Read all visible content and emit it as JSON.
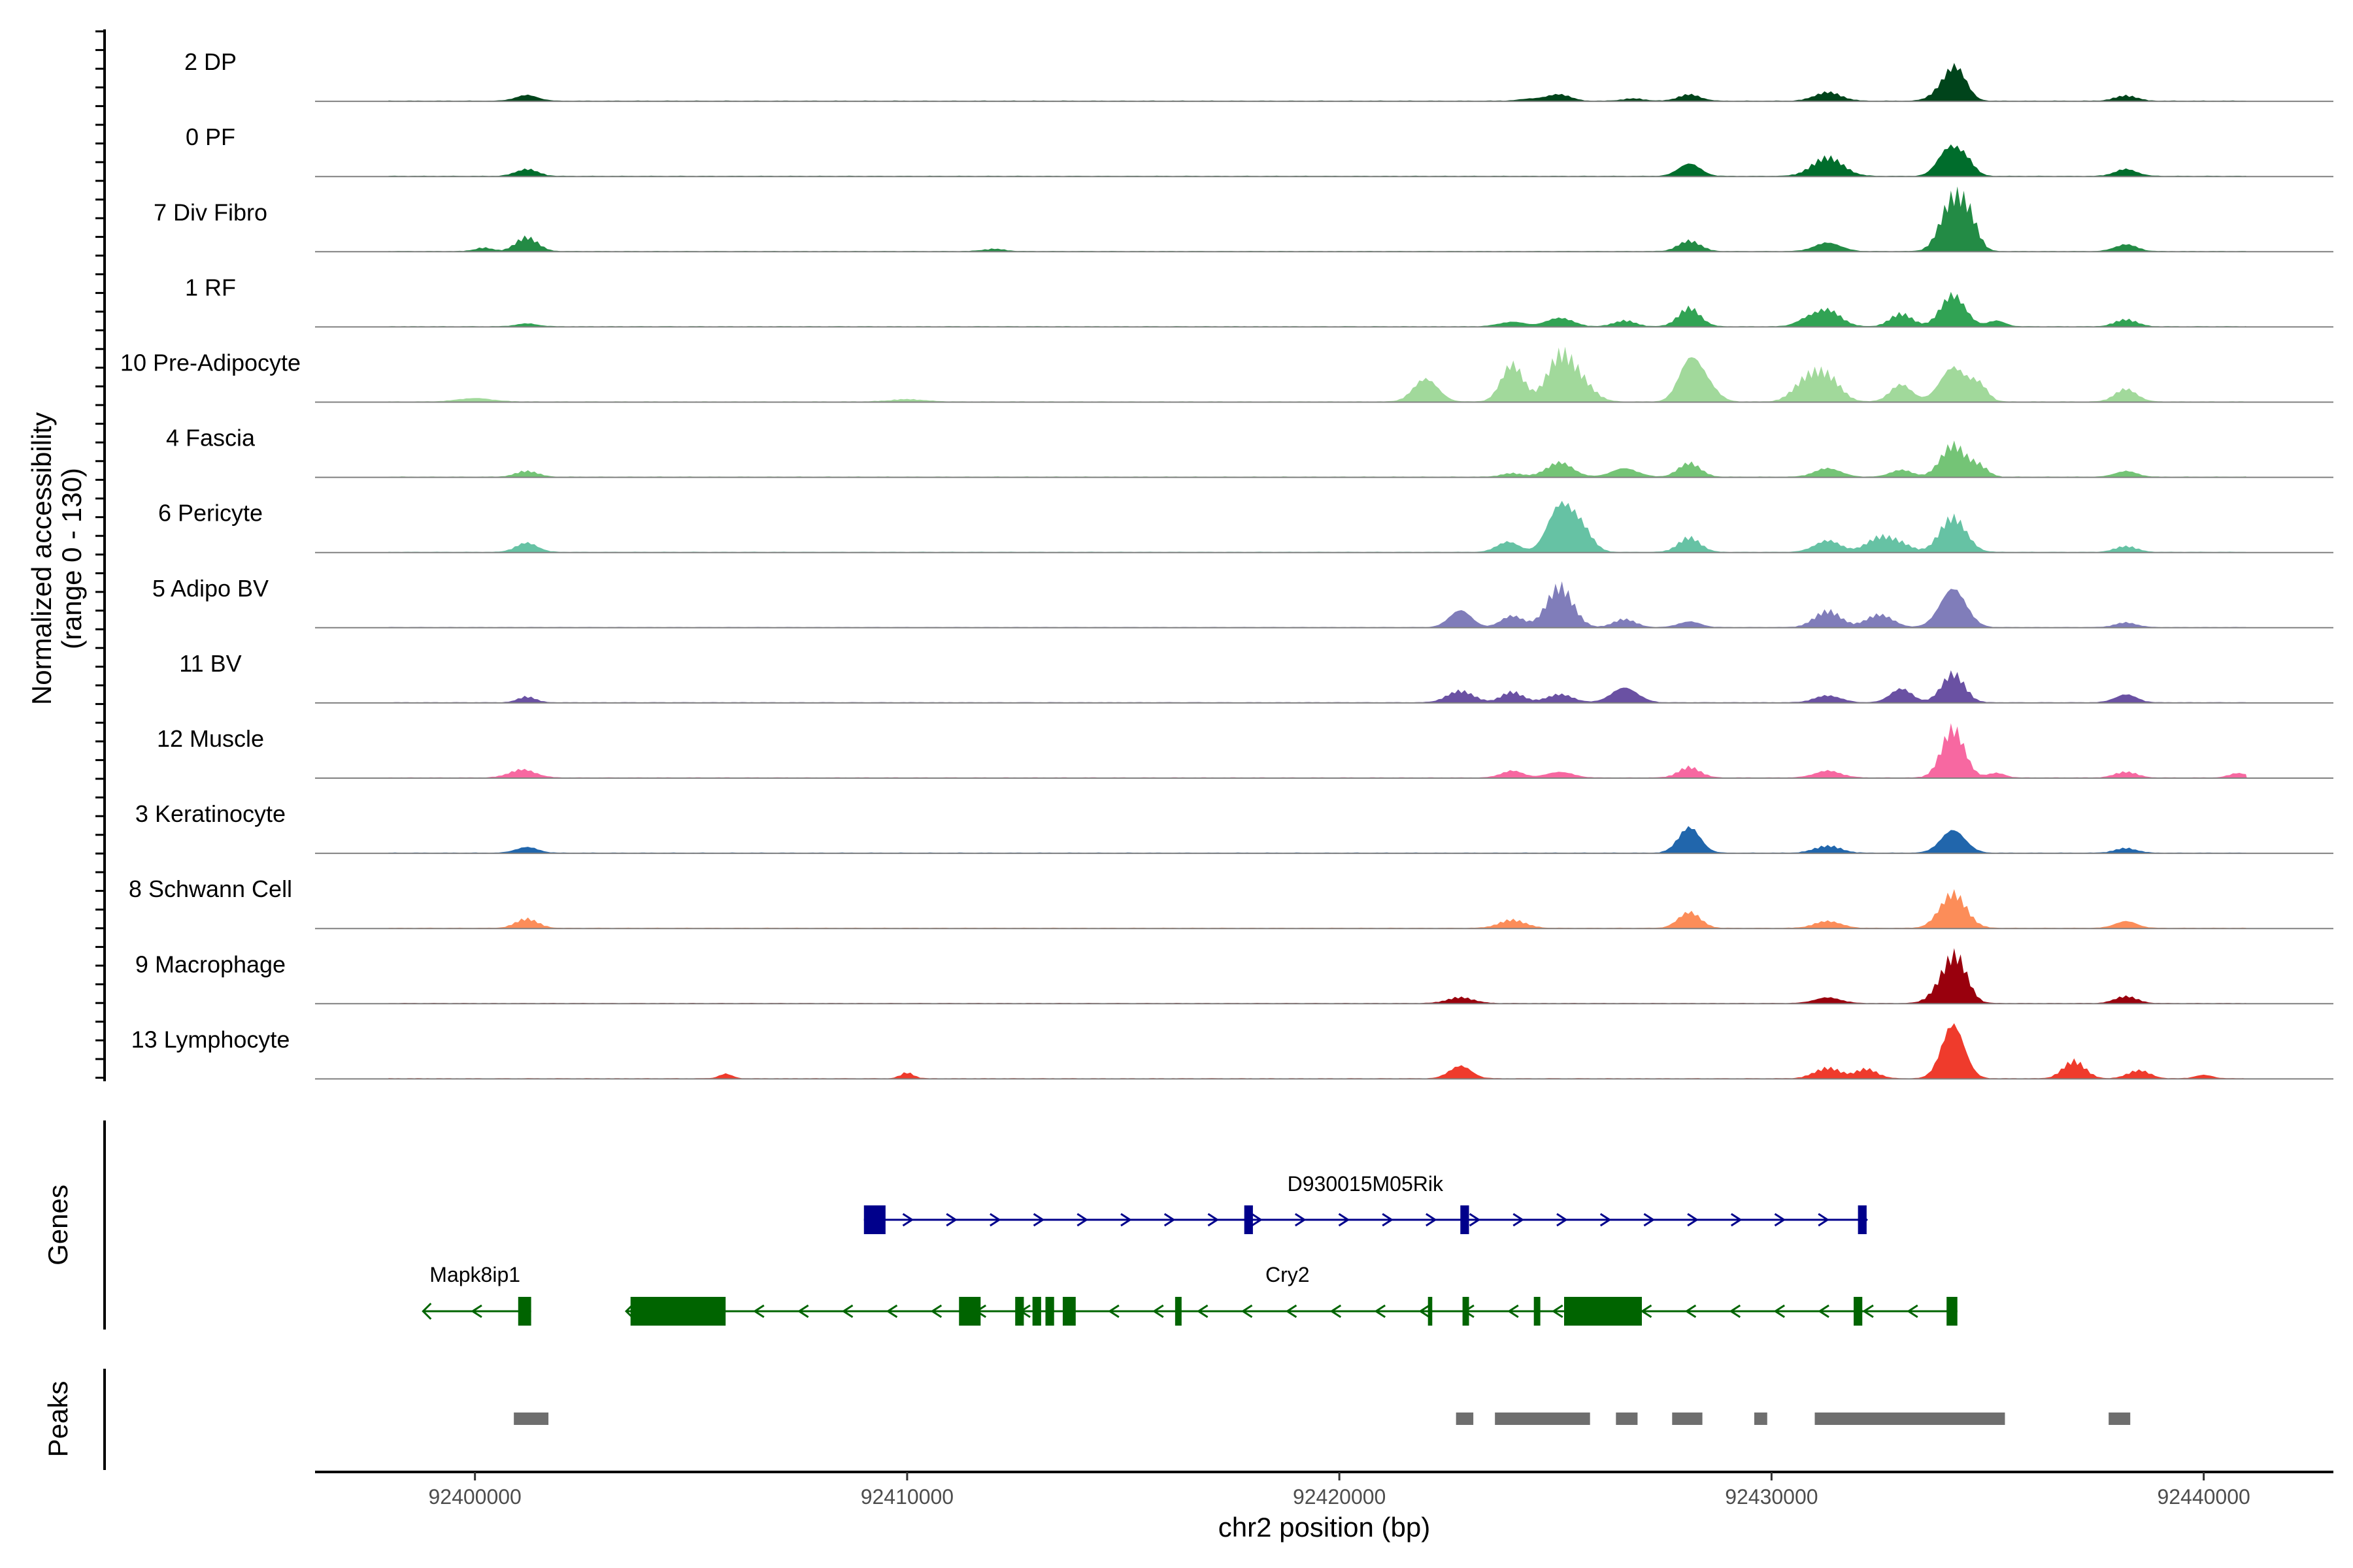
{
  "chart_data": {
    "type": "area",
    "title": "",
    "ylabel_line1": "Normalized accessibility",
    "ylabel_line2": "(range 0 - 130)",
    "genes_label": "Genes",
    "peaks_label": "Peaks",
    "xlabel": "chr2 position (bp)",
    "xlim": [
      92396300,
      92443000
    ],
    "xticks": [
      92400000,
      92410000,
      92420000,
      92430000,
      92440000
    ],
    "ylim": [
      0,
      130
    ],
    "profile_points": [
      92398000,
      92398500,
      92399000,
      92399500,
      92400000,
      92400500,
      92401000,
      92401500,
      92402000,
      92402500,
      92403000,
      92403500,
      92404000,
      92404500,
      92405000,
      92405500,
      92406000,
      92406500,
      92407000,
      92407500,
      92408000,
      92408500,
      92409000,
      92409500,
      92410000,
      92410500,
      92411000,
      92411500,
      92412000,
      92412500,
      92413000,
      92413500,
      92414000,
      92414500,
      92415000,
      92415500,
      92416000,
      92416500,
      92417000,
      92417500,
      92418000,
      92418500,
      92419000,
      92419500,
      92420000,
      92420500,
      92421000,
      92421500,
      92422000,
      92422500,
      92423000,
      92423500,
      92424000,
      92424500,
      92425000,
      92425500,
      92426000,
      92426500,
      92427000,
      92427500,
      92428000,
      92428500,
      92429000,
      92429500,
      92430000,
      92430500,
      92431000,
      92431500,
      92432000,
      92432500,
      92433000,
      92433500,
      92434000,
      92434500,
      92435000,
      92435500,
      92436000,
      92436500,
      92437000,
      92437500,
      92438000,
      92438500,
      92439000,
      92439500,
      92440000,
      92440500,
      92441000
    ],
    "series": [
      {
        "name": "2 DP",
        "color": "#00441b",
        "peaks": [
          [
            92401200,
            10,
            250
          ],
          [
            92424500,
            4,
            300
          ],
          [
            92425100,
            11,
            250
          ],
          [
            92426800,
            4,
            250
          ],
          [
            92428100,
            11,
            250
          ],
          [
            92431300,
            15,
            300
          ],
          [
            92434000,
            22,
            260
          ],
          [
            92434300,
            48,
            230
          ],
          [
            92438200,
            9,
            250
          ]
        ]
      },
      {
        "name": "0 PF",
        "color": "#006d2c",
        "peaks": [
          [
            92401200,
            12,
            250
          ],
          [
            92428100,
            22,
            250
          ],
          [
            92431300,
            32,
            350
          ],
          [
            92434100,
            48,
            250
          ],
          [
            92434500,
            25,
            200
          ],
          [
            92438200,
            12,
            250
          ]
        ]
      },
      {
        "name": "7 Div Fibro",
        "color": "#238b45",
        "peaks": [
          [
            92400200,
            6,
            200
          ],
          [
            92401200,
            24,
            250
          ],
          [
            92412000,
            4,
            250
          ],
          [
            92428100,
            18,
            250
          ],
          [
            92431300,
            15,
            300
          ],
          [
            92434200,
            90,
            280
          ],
          [
            92434600,
            40,
            200
          ],
          [
            92438200,
            12,
            250
          ]
        ]
      },
      {
        "name": "1 RF",
        "color": "#31a354",
        "peaks": [
          [
            92401200,
            5,
            250
          ],
          [
            92424000,
            8,
            300
          ],
          [
            92425100,
            15,
            300
          ],
          [
            92426600,
            10,
            250
          ],
          [
            92428100,
            32,
            250
          ],
          [
            92430800,
            10,
            250
          ],
          [
            92431300,
            28,
            300
          ],
          [
            92433000,
            22,
            250
          ],
          [
            92434200,
            55,
            280
          ],
          [
            92435200,
            10,
            200
          ],
          [
            92438200,
            12,
            250
          ]
        ]
      },
      {
        "name": "10 Pre-Adipocyte",
        "color": "#a1d99b",
        "peaks": [
          [
            92400000,
            6,
            400
          ],
          [
            92410000,
            4,
            400
          ],
          [
            92422000,
            40,
            280
          ],
          [
            92424000,
            65,
            250
          ],
          [
            92425100,
            75,
            300
          ],
          [
            92425600,
            30,
            300
          ],
          [
            92428100,
            70,
            250
          ],
          [
            92428500,
            28,
            250
          ],
          [
            92430800,
            35,
            300
          ],
          [
            92431300,
            40,
            300
          ],
          [
            92433000,
            30,
            250
          ],
          [
            92434200,
            60,
            300
          ],
          [
            92434800,
            28,
            200
          ],
          [
            92438200,
            22,
            250
          ]
        ]
      },
      {
        "name": "4 Fascia",
        "color": "#74c476",
        "peaks": [
          [
            92401200,
            10,
            250
          ],
          [
            92424000,
            6,
            250
          ],
          [
            92425100,
            25,
            300
          ],
          [
            92426600,
            15,
            300
          ],
          [
            92428100,
            24,
            250
          ],
          [
            92431300,
            15,
            300
          ],
          [
            92433000,
            12,
            250
          ],
          [
            92434200,
            55,
            280
          ],
          [
            92434800,
            18,
            200
          ],
          [
            92438200,
            10,
            250
          ]
        ]
      },
      {
        "name": "6 Pericyte",
        "color": "#66c2a4",
        "peaks": [
          [
            92401200,
            16,
            250
          ],
          [
            92423900,
            18,
            250
          ],
          [
            92425100,
            80,
            280
          ],
          [
            92425600,
            40,
            250
          ],
          [
            92428100,
            25,
            250
          ],
          [
            92431300,
            20,
            300
          ],
          [
            92432500,
            25,
            300
          ],
          [
            92433000,
            12,
            250
          ],
          [
            92434200,
            60,
            300
          ],
          [
            92438200,
            10,
            250
          ]
        ]
      },
      {
        "name": "5 Adipo BV",
        "color": "#807dba",
        "peaks": [
          [
            92422800,
            30,
            250
          ],
          [
            92424000,
            20,
            250
          ],
          [
            92425100,
            70,
            300
          ],
          [
            92426600,
            14,
            250
          ],
          [
            92428100,
            10,
            250
          ],
          [
            92431300,
            28,
            300
          ],
          [
            92432500,
            22,
            300
          ],
          [
            92434200,
            68,
            300
          ],
          [
            92438200,
            8,
            250
          ]
        ]
      },
      {
        "name": "11 BV",
        "color": "#6a51a3",
        "peaks": [
          [
            92401200,
            10,
            200
          ],
          [
            92422800,
            20,
            300
          ],
          [
            92424000,
            18,
            250
          ],
          [
            92425100,
            14,
            300
          ],
          [
            92426600,
            26,
            300
          ],
          [
            92431300,
            12,
            300
          ],
          [
            92433000,
            24,
            250
          ],
          [
            92434200,
            50,
            260
          ],
          [
            92438200,
            14,
            250
          ]
        ]
      },
      {
        "name": "12 Muscle",
        "color": "#f768a1",
        "peaks": [
          [
            92401100,
            14,
            300
          ],
          [
            92424000,
            12,
            250
          ],
          [
            92425100,
            10,
            300
          ],
          [
            92428100,
            18,
            250
          ],
          [
            92431300,
            12,
            300
          ],
          [
            92434200,
            85,
            260
          ],
          [
            92435200,
            8,
            200
          ],
          [
            92438200,
            10,
            250
          ],
          [
            92440800,
            8,
            200
          ]
        ]
      },
      {
        "name": "3 Keratinocyte",
        "color": "#2166ac",
        "peaks": [
          [
            92401200,
            10,
            250
          ],
          [
            92428100,
            45,
            250
          ],
          [
            92431300,
            12,
            300
          ],
          [
            92434200,
            40,
            280
          ],
          [
            92438200,
            8,
            250
          ]
        ]
      },
      {
        "name": "8 Schwann Cell",
        "color": "#fc8d59",
        "peaks": [
          [
            92401200,
            16,
            250
          ],
          [
            92424000,
            14,
            300
          ],
          [
            92428100,
            28,
            250
          ],
          [
            92431300,
            12,
            300
          ],
          [
            92434200,
            60,
            300
          ],
          [
            92438200,
            12,
            250
          ]
        ]
      },
      {
        "name": "9 Macrophage",
        "color": "#99000d",
        "peaks": [
          [
            92422800,
            10,
            300
          ],
          [
            92431300,
            10,
            300
          ],
          [
            92434000,
            30,
            280
          ],
          [
            92434300,
            65,
            250
          ],
          [
            92438200,
            12,
            250
          ]
        ]
      },
      {
        "name": "13 Lymphocyte",
        "color": "#ef3b2c",
        "peaks": [
          [
            92405800,
            8,
            150
          ],
          [
            92410000,
            10,
            150
          ],
          [
            92422800,
            22,
            250
          ],
          [
            92431300,
            18,
            300
          ],
          [
            92432200,
            16,
            250
          ],
          [
            92434200,
            95,
            260
          ],
          [
            92437000,
            30,
            250
          ],
          [
            92438500,
            14,
            250
          ],
          [
            92440000,
            6,
            200
          ]
        ]
      }
    ],
    "genes": [
      {
        "name": "D930015M05Rik",
        "strand": "+",
        "color": "#00008b",
        "start": 92409000,
        "end": 92432200,
        "exons": [
          [
            92409000,
            92409500
          ],
          [
            92417800,
            92418000
          ],
          [
            92422800,
            92423000
          ],
          [
            92432000,
            92432200
          ]
        ]
      },
      {
        "name": "Mapk8ip1",
        "strand": "-",
        "color": "#006400",
        "start": 92398800,
        "end": 92401300,
        "exons": [
          [
            92401000,
            92401300
          ]
        ]
      },
      {
        "name": "Cry2",
        "strand": "-",
        "color": "#006400",
        "start": 92403500,
        "end": 92434300,
        "exons": [
          [
            92403600,
            92405800
          ],
          [
            92411200,
            92411700
          ],
          [
            92412500,
            92412700
          ],
          [
            92412900,
            92413100
          ],
          [
            92413200,
            92413400
          ],
          [
            92413600,
            92413900
          ],
          [
            92416200,
            92416350
          ],
          [
            92422050,
            92422150
          ],
          [
            92422850,
            92423000
          ],
          [
            92424500,
            92424650
          ],
          [
            92425200,
            92427000
          ],
          [
            92431900,
            92432100
          ],
          [
            92434050,
            92434300
          ]
        ]
      }
    ],
    "peak_regions": [
      [
        92400900,
        92401700
      ],
      [
        92422700,
        92423100
      ],
      [
        92423600,
        92425800
      ],
      [
        92426400,
        92426900
      ],
      [
        92427700,
        92428400
      ],
      [
        92429600,
        92429900
      ],
      [
        92431000,
        92435400
      ],
      [
        92437800,
        92438300
      ]
    ]
  }
}
